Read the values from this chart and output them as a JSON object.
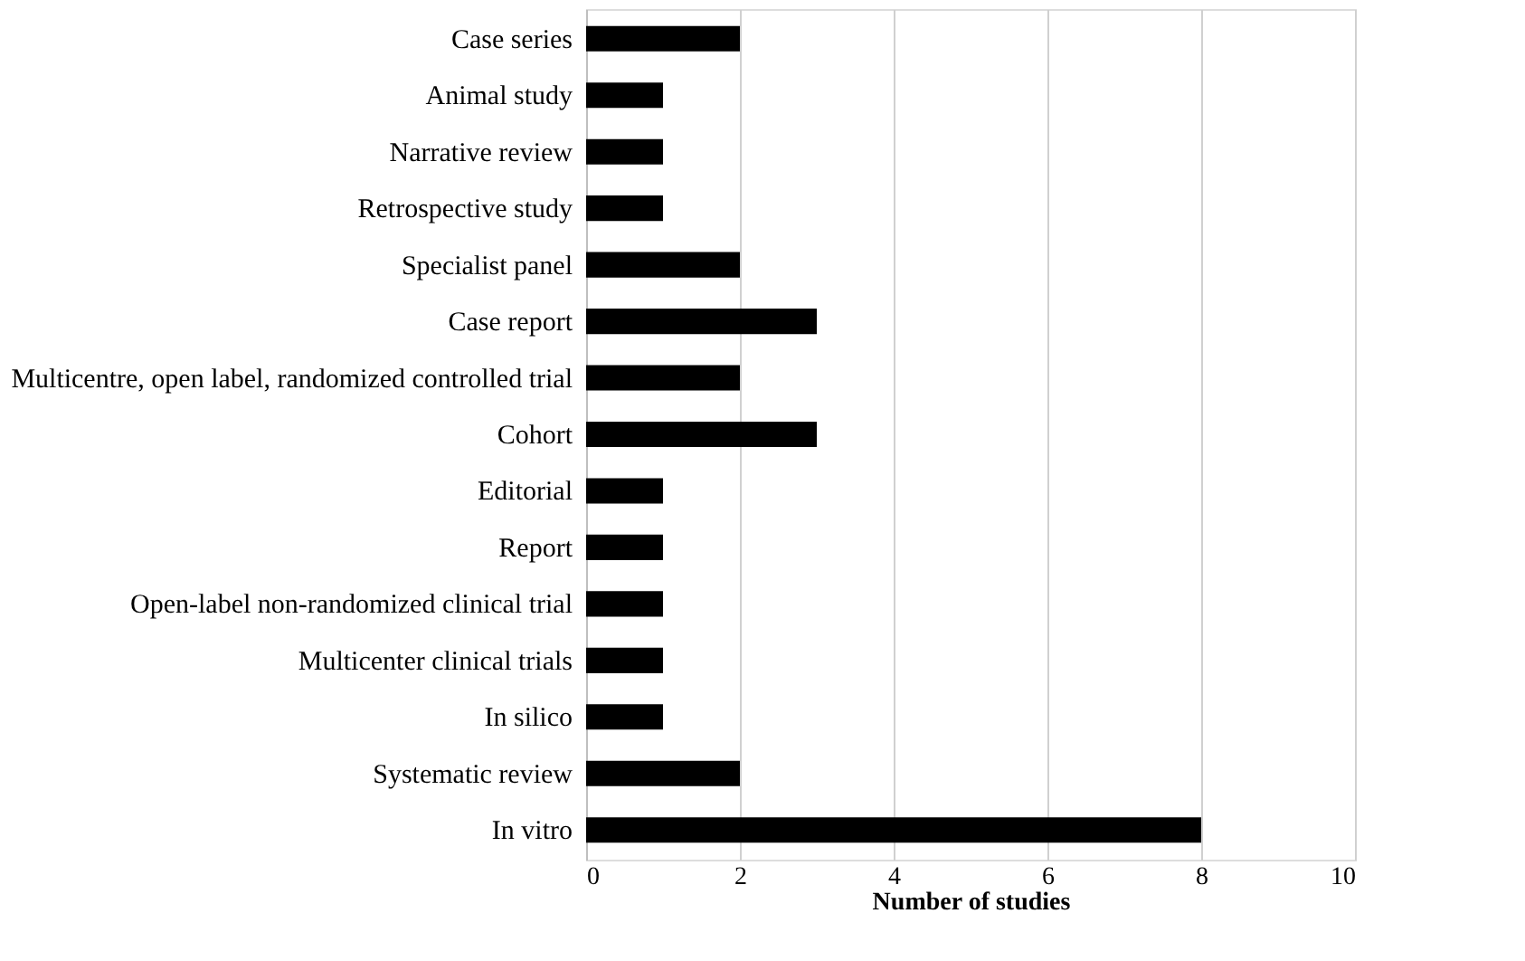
{
  "chart_data": {
    "type": "bar",
    "orientation": "horizontal",
    "xlabel": "Number of studies",
    "categories": [
      "Case series",
      "Animal study",
      "Narrative review",
      "Retrospective study",
      "Specialist panel",
      "Case report",
      "Multicentre, open label, randomized controlled trial",
      "Cohort",
      "Editorial",
      "Report",
      "Open-label non-randomized clinical trial",
      "Multicenter clinical trials",
      "In silico",
      "Systematic review",
      "In vitro"
    ],
    "values": [
      2,
      1,
      1,
      1,
      2,
      3,
      2,
      3,
      1,
      1,
      1,
      1,
      1,
      2,
      8
    ],
    "color": "#000000",
    "xlim": [
      0,
      10
    ],
    "xticks": [
      0,
      2,
      4,
      6,
      8,
      10
    ],
    "grid": "x"
  }
}
